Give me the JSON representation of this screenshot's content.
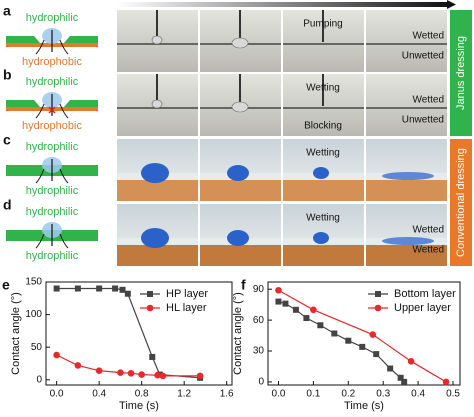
{
  "panels": [
    {
      "label": "a",
      "top_layer": "hydrophilic",
      "bottom_layer": "hydrophobic",
      "annotations": [
        "Pumping"
      ],
      "states": [
        "Wetted",
        "Unwetted"
      ]
    },
    {
      "label": "b",
      "top_layer": "hydrophilic",
      "bottom_layer": "hydrophobic",
      "annotations": [
        "Wetting",
        "Blocking"
      ],
      "states": [
        "Wetted",
        "Unwetted"
      ]
    },
    {
      "label": "c",
      "top_layer": "hydrophilic",
      "bottom_layer": "hydrophilic",
      "annotations": [
        "Wetting"
      ]
    },
    {
      "label": "d",
      "top_layer": "hydrophilic",
      "bottom_layer": "hydrophilic",
      "annotations": [
        "Wetting"
      ],
      "states": [
        "Wetted",
        "Wetted"
      ]
    }
  ],
  "side_labels": [
    "Janus dressing",
    "Conventional dressing"
  ],
  "chart_data": [
    {
      "type": "line",
      "label": "e",
      "xlabel": "Time (s)",
      "ylabel": "Contact angle (°)",
      "xlim": [
        -0.1,
        1.65
      ],
      "ylim": [
        -8,
        150
      ],
      "xticks": [
        {
          "value": 0,
          "label": "0.0"
        },
        0.4,
        0.8,
        1.2,
        1.6
      ],
      "yticks": [
        0,
        50,
        100,
        150
      ],
      "legend": "upper right",
      "series": [
        {
          "name": "HP layer",
          "color": "#444444",
          "marker": "square",
          "x": [
            0,
            0.2,
            0.4,
            0.55,
            0.62,
            0.67,
            0.9,
            0.97,
            1.35
          ],
          "values": [
            140,
            140,
            140,
            140,
            138,
            132,
            35,
            8,
            3
          ]
        },
        {
          "name": "HL layer",
          "color": "#e8282b",
          "marker": "circle",
          "x": [
            0,
            0.2,
            0.4,
            0.6,
            0.7,
            0.8,
            0.95,
            1.0,
            1.35
          ],
          "values": [
            38,
            22,
            14,
            11,
            10,
            8,
            7,
            6,
            6
          ]
        }
      ]
    },
    {
      "type": "line",
      "label": "f",
      "xlabel": "Time (s)",
      "ylabel": "Contact angle (°)",
      "xlim": [
        -0.03,
        0.52
      ],
      "ylim": [
        -3,
        97
      ],
      "xticks": [
        {
          "value": 0,
          "label": "0.0"
        },
        0.1,
        0.2,
        0.3,
        0.4,
        0.5
      ],
      "yticks": [
        0,
        30,
        60,
        90
      ],
      "legend": "upper right",
      "series": [
        {
          "name": "Bottom layer",
          "color": "#444444",
          "marker": "square",
          "x": [
            0,
            0.02,
            0.05,
            0.08,
            0.12,
            0.16,
            0.2,
            0.24,
            0.28,
            0.32,
            0.35,
            0.36
          ],
          "values": [
            78,
            76,
            70,
            62,
            55,
            47,
            40,
            34,
            27,
            13,
            4,
            0
          ]
        },
        {
          "name": "Upper layer",
          "color": "#e8282b",
          "marker": "circle",
          "x": [
            0,
            0.1,
            0.27,
            0.38,
            0.48
          ],
          "values": [
            89,
            70,
            46,
            20,
            0
          ]
        }
      ]
    }
  ]
}
